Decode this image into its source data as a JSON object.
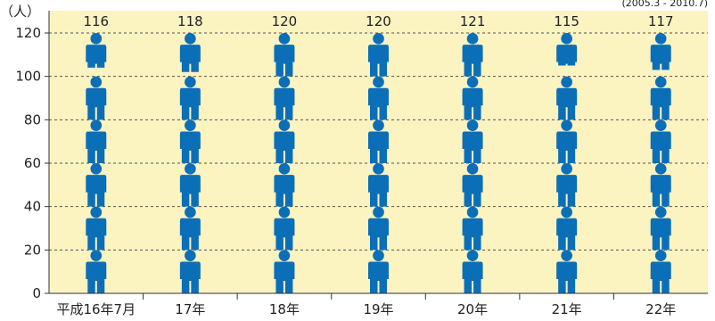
{
  "chart_data": {
    "type": "bar",
    "unit_label": "（人）",
    "period_note": "(2005.3 - 2010.7)",
    "categories": [
      "平成16年7月",
      "17年",
      "18年",
      "19年",
      "20年",
      "21年",
      "22年"
    ],
    "values": [
      116,
      118,
      120,
      120,
      121,
      115,
      117
    ],
    "ylim": [
      0,
      120
    ],
    "yticks": [
      0,
      20,
      40,
      60,
      80,
      100,
      120
    ],
    "grid": true,
    "colors": {
      "background": "#fbf3c0",
      "icon": "#0b6fb8",
      "grid": "#555555"
    },
    "icon": "person-icon",
    "icon_unit": 20
  }
}
